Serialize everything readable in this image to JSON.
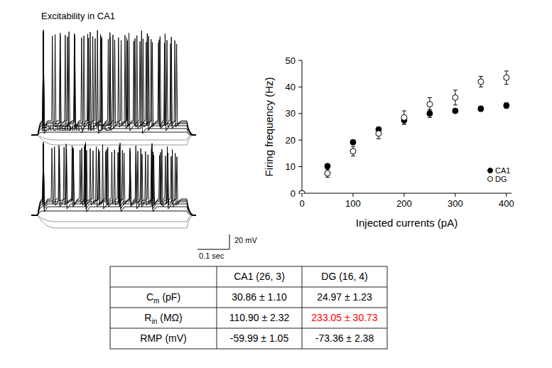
{
  "traces": [
    {
      "title": "Excitability in CA1"
    },
    {
      "title": "Excitability in DG"
    }
  ],
  "scale_bar": {
    "voltage": "20 mV",
    "time": "0.1 sec"
  },
  "chart_data": {
    "type": "scatter",
    "x_label": "Injected currents (pA)",
    "y_label": "Firing frequency (Hz)",
    "xlim": [
      0,
      410
    ],
    "ylim": [
      0,
      50
    ],
    "xticks": [
      0,
      100,
      200,
      300,
      400
    ],
    "yticks": [
      0,
      10,
      20,
      30,
      40,
      50
    ],
    "grid": false,
    "legend": "lower right",
    "series": [
      {
        "name": "CA1",
        "color": "#000000",
        "marker": "circle",
        "x": [
          0,
          50,
          100,
          150,
          200,
          250,
          300,
          350,
          400
        ],
        "values": [
          0,
          10.2,
          19.2,
          24,
          27.5,
          30,
          31,
          31.8,
          33
        ],
        "errors": [
          0,
          0.8,
          0.6,
          0.8,
          1.5,
          1.5,
          0.8,
          1,
          1
        ]
      },
      {
        "name": "DG",
        "color": "#000000",
        "marker": "circle-open",
        "x": [
          0,
          50,
          100,
          150,
          200,
          250,
          300,
          350,
          400
        ],
        "values": [
          0,
          7.5,
          15.8,
          22.5,
          28.5,
          33.5,
          36,
          42,
          43.5
        ],
        "errors": [
          0,
          1.5,
          1.8,
          2,
          2.5,
          2.5,
          2.8,
          2,
          2.5
        ]
      }
    ]
  },
  "table": {
    "columns": [
      "CA1 (26, 3)",
      "DG (16, 4)"
    ],
    "rows": [
      {
        "label": {
          "main": "C",
          "sub": "m",
          "unit": "(pF)"
        },
        "cells": [
          {
            "text": "30.86 ± 1.10"
          },
          {
            "text": "24.97 ± 1.23"
          }
        ]
      },
      {
        "label": {
          "main": "R",
          "sub": "in",
          "unit": "(MΩ)"
        },
        "cells": [
          {
            "text": "110.90 ± 2.32"
          },
          {
            "text": "233.05 ± 30.73",
            "color": "#ff0000"
          }
        ]
      },
      {
        "label": {
          "main": "RMP",
          "unit": "(mV)"
        },
        "cells": [
          {
            "text": "-59.99 ± 1.05"
          },
          {
            "text": "-73.36 ± 2.38"
          }
        ]
      }
    ]
  }
}
